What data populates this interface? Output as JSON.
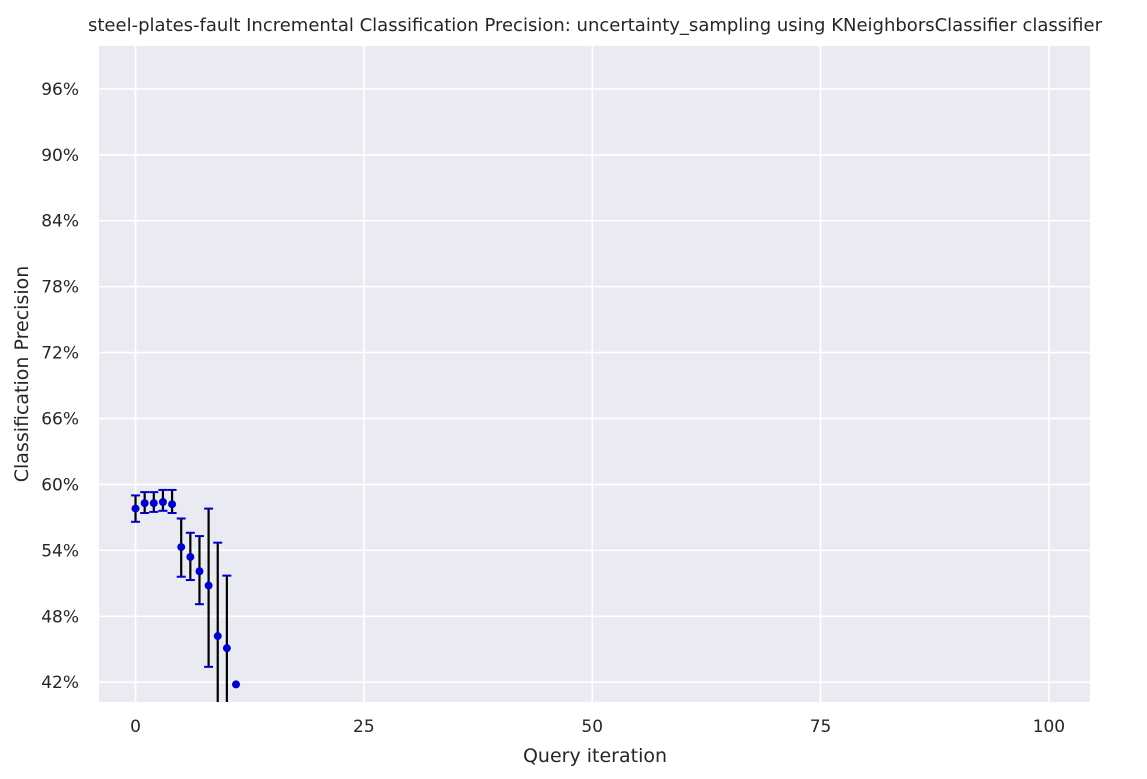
{
  "chart_data": {
    "type": "scatter",
    "title": "steel-plates-fault Incremental Classification Precision: uncertainty_sampling using KNeighborsClassifier classifier",
    "xlabel": "Query iteration",
    "ylabel": "Classification Precision",
    "xlim": [
      -4,
      104.5
    ],
    "ylim": [
      0.402,
      0.999
    ],
    "xticks": [
      0,
      25,
      50,
      75,
      100
    ],
    "xtick_labels": [
      "0",
      "25",
      "50",
      "75",
      "100"
    ],
    "yticks": [
      0.42,
      0.48,
      0.54,
      0.6,
      0.66,
      0.72,
      0.78,
      0.84,
      0.9,
      0.96
    ],
    "ytick_labels": [
      "42%",
      "48%",
      "54%",
      "60%",
      "66%",
      "72%",
      "78%",
      "84%",
      "90%",
      "96%"
    ],
    "grid": true,
    "colors": {
      "background": "#eaeaf2",
      "grid": "#ffffff",
      "point": "#0000cc",
      "errorbar": "#000000",
      "cap": "#0000cc"
    },
    "series": [
      {
        "x": [
          0,
          1,
          2,
          3,
          4,
          5,
          6,
          7,
          8,
          9,
          10,
          11
        ],
        "y": [
          0.578,
          0.583,
          0.583,
          0.584,
          0.582,
          0.543,
          0.534,
          0.521,
          0.508,
          0.462,
          0.451,
          0.418
        ],
        "err_low": [
          0.566,
          0.574,
          0.575,
          0.576,
          0.574,
          0.516,
          0.513,
          0.491,
          0.434,
          0.4,
          0.4,
          null
        ],
        "err_high": [
          0.59,
          0.593,
          0.593,
          0.595,
          0.595,
          0.569,
          0.556,
          0.553,
          0.578,
          0.547,
          0.517,
          null
        ]
      }
    ]
  }
}
